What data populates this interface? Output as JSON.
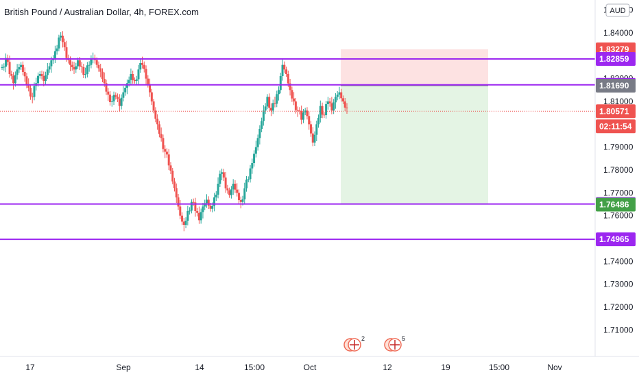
{
  "title": "British Pound / Australian Dollar, 4h, FOREX.com",
  "currency": "AUD",
  "colors": {
    "up": "#26a69a",
    "down": "#ef5350",
    "level": "#9c27f0",
    "stop_zone": "#fde2e2",
    "target_zone": "#e4f4e4",
    "last_price": "#ef5350",
    "entry_tag": "#787b86",
    "target_tag": "#43a047"
  },
  "chart_data": {
    "type": "candlestick",
    "title": "British Pound / Australian Dollar, 4h, FOREX.com",
    "ylim": [
      1.702,
      1.852
    ],
    "y_ticks": [
      "1.85000",
      "1.84000",
      "1.83000",
      "1.82000",
      "1.81000",
      "1.80000",
      "1.79000",
      "1.78000",
      "1.77000",
      "1.76000",
      "1.75000",
      "1.74000",
      "1.73000",
      "1.72000",
      "1.71000"
    ],
    "x_ticks": [
      "17",
      "Sep",
      "14",
      "15:00",
      "Oct",
      "12",
      "19",
      "15:00",
      "Nov"
    ],
    "horizontal_levels": [
      {
        "value": 1.82859,
        "label": "1.82859"
      },
      {
        "value": 1.81726,
        "label": "1.81726"
      },
      {
        "value": 1.76512,
        "label": "1.76512"
      },
      {
        "value": 1.74965,
        "label": "1.74965"
      }
    ],
    "position": {
      "stop": 1.83279,
      "stop_label": "1.83279",
      "entry": 1.8169,
      "entry_label": "1.81690",
      "target": 1.76486,
      "target_label": "1.76486"
    },
    "last_price": 1.80571,
    "last_price_label": "1.80571",
    "countdown": "02:11:54",
    "path": [
      1.825,
      1.829,
      1.822,
      1.818,
      1.824,
      1.826,
      1.821,
      1.816,
      1.812,
      1.818,
      1.822,
      1.819,
      1.824,
      1.828,
      1.832,
      1.838,
      1.836,
      1.829,
      1.826,
      1.824,
      1.828,
      1.825,
      1.822,
      1.826,
      1.829,
      1.826,
      1.823,
      1.818,
      1.813,
      1.81,
      1.812,
      1.808,
      1.814,
      1.818,
      1.822,
      1.819,
      1.824,
      1.826,
      1.82,
      1.814,
      1.806,
      1.8,
      1.794,
      1.788,
      1.782,
      1.775,
      1.768,
      1.76,
      1.756,
      1.762,
      1.766,
      1.762,
      1.758,
      1.764,
      1.767,
      1.763,
      1.768,
      1.774,
      1.779,
      1.772,
      1.769,
      1.774,
      1.77,
      1.766,
      1.772,
      1.776,
      1.783,
      1.79,
      1.798,
      1.806,
      1.812,
      1.806,
      1.809,
      1.815,
      1.826,
      1.822,
      1.815,
      1.81,
      1.806,
      1.802,
      1.806,
      1.8,
      1.792,
      1.8,
      1.808,
      1.804,
      1.81,
      1.806,
      1.812,
      1.814,
      1.81,
      1.807
    ]
  },
  "events": [
    {
      "count": "2"
    },
    {
      "count": "5"
    }
  ]
}
